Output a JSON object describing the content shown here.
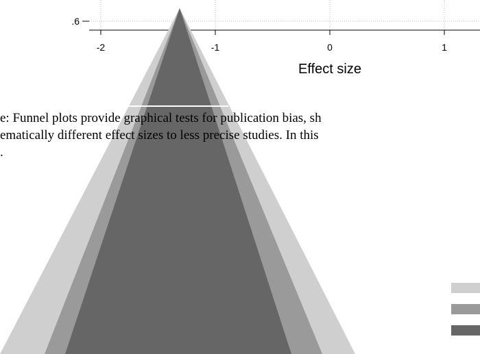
{
  "plot": {
    "x_label": "Effect size",
    "xticks": [
      -2,
      -1,
      0,
      1
    ],
    "yticks": [
      {
        "value": 0.6,
        "label": ".6"
      }
    ]
  },
  "caption": {
    "lines": [
      "e: Funnel plots provide graphical tests for publication bias, sh",
      "ematically different effect sizes to less precise studies. In this",
      "."
    ]
  }
}
